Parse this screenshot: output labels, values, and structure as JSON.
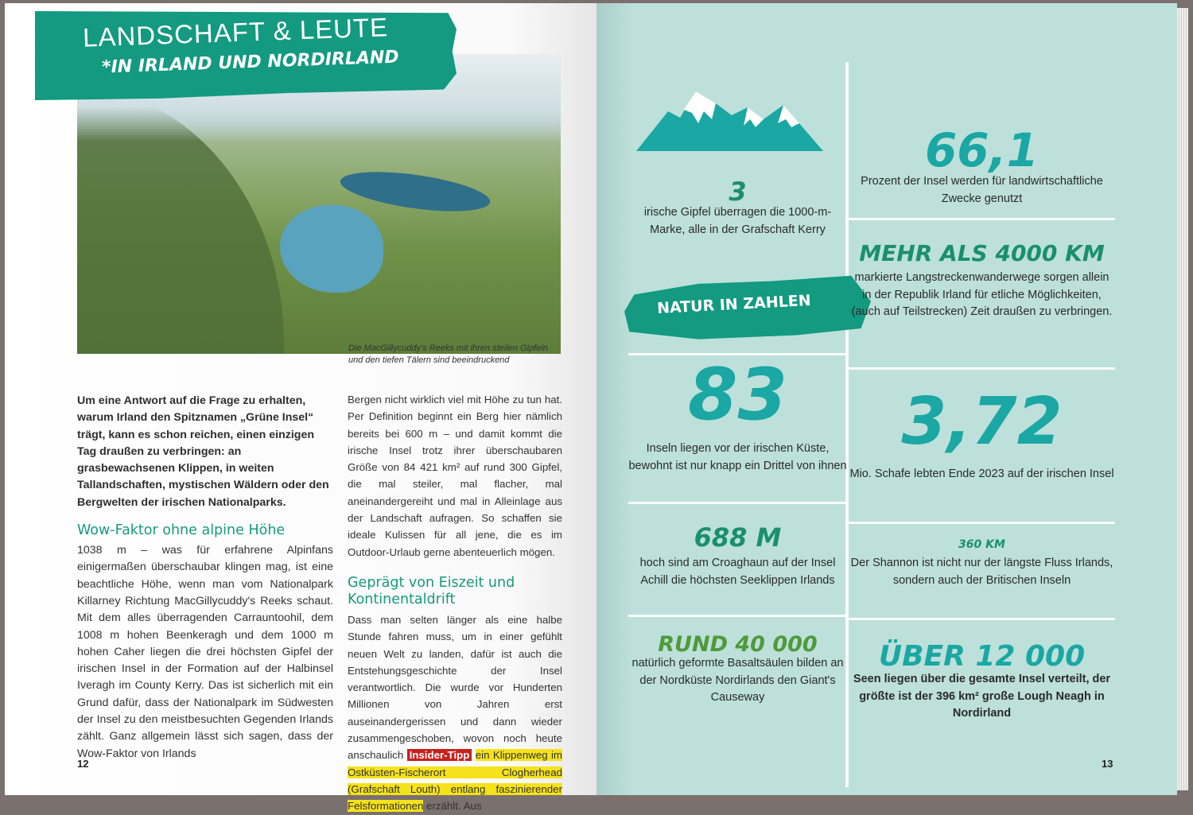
{
  "left_page": {
    "header": {
      "title": "LANDSCHAFT & LEUTE",
      "subtitle": "*IN IRLAND UND NORDIRLAND"
    },
    "photo_caption": "Die MacGillycuddy's Reeks mit ihren steilen Gipfeln und den tiefen Tälern sind beeindruckend",
    "intro": "Um eine Antwort auf die Frage zu erhalten, warum Irland den Spitznamen „Grüne Insel“ trägt, kann es schon reichen, einen einzigen Tag draußen zu verbringen: an grasbewachsenen Klippen, in weiten Tallandschaften, mystischen Wäldern oder den Bergwelten der irischen Nationalparks.",
    "section1": {
      "heading": "Wow-Faktor ohne alpine Höhe",
      "text": "1038 m – was für erfahrene Alpinfans einigermaßen überschaubar klingen mag, ist eine beachtliche Höhe, wenn man vom Nationalpark Killarney Richtung MacGillycuddy's Reeks schaut. Mit dem alles überragenden Carrauntoohil, dem 1008 m hohen Beenkeragh und dem 1000 m hohen Caher liegen die drei höchsten Gipfel der irischen Insel in der Formation auf der Halbinsel Iveragh im County Kerry. Das ist sicherlich mit ein Grund dafür, dass der Nationalpark im Südwesten der Insel zu den meistbesuchten Gegenden Irlands zählt. Ganz allgemein lässt sich sagen, dass der Wow-Faktor von Irlands"
    },
    "section1_cont": "Bergen nicht wirklich viel mit Höhe zu tun hat. Per Definition beginnt ein Berg hier nämlich bereits bei 600 m – und damit kommt die irische Insel trotz ihrer überschaubaren Größe von 84 421 km² auf rund 300 Gipfel, die mal steiler, mal flacher, mal aneinandergereiht und mal in Alleinlage aus der Landschaft aufragen. So schaffen sie ideale Kulissen für all jene, die es im Outdoor-Urlaub gerne abenteuerlich mögen.",
    "section2": {
      "heading": "Geprägt von Eiszeit und Kontinentaldrift",
      "text": "Dass man selten länger als eine halbe Stunde fahren muss, um in einer gefühlt neuen Welt zu landen, dafür ist auch die Entstehungsgeschichte der Insel verantwortlich. Die wurde vor Hunderten Millionen von Jahren erst auseinandergerissen und dann wieder zusammengeschoben, wovon noch heute anschaulich",
      "insider_label": "Insider-Tipp",
      "insider_text": "ein Klippenweg im Ostküsten-Fischerort Clogherhead (Grafschaft Louth) entlang faszinierender Felsformationen",
      "after": "erzählt. Aus"
    },
    "page_number": "12"
  },
  "right_page": {
    "section_label": "NATUR IN ZAHLEN",
    "stats": [
      {
        "value": "3",
        "text": "irische Gipfel überragen die 1000-m-Marke, alle in der Grafschaft Kerry"
      },
      {
        "value": "66,1",
        "text": "Prozent der Insel werden für landwirtschaftliche Zwecke genutzt"
      },
      {
        "value": "MEHR ALS 4000 KM",
        "text": "markierte Langstreckenwanderwege sorgen allein in der Republik Irland für etliche Möglichkeiten, (auch auf Teilstrecken) Zeit draußen zu verbringen."
      },
      {
        "value": "83",
        "text": "Inseln liegen vor der irischen Küste, bewohnt ist nur knapp ein Drittel von ihnen"
      },
      {
        "value": "3,72",
        "text": "Mio. Schafe lebten Ende 2023 auf der irischen Insel"
      },
      {
        "value": "688 M",
        "text": "hoch sind am Croaghaun auf der Insel Achill die höchsten Seeklippen Irlands"
      },
      {
        "value": "360 KM",
        "text": "Der Shannon ist nicht nur der längste Fluss Irlands, sondern auch der Britischen Inseln"
      },
      {
        "value": "RUND 40 000",
        "text": "natürlich geformte Basaltsäulen bilden an der Nordküste Nordirlands den Giant's Causeway"
      },
      {
        "value": "ÜBER 12 000",
        "text": "Seen liegen über die gesamte Insel verteilt, der größte ist der 396 km² große Lough Neagh in Nordirland"
      }
    ],
    "page_number": "13"
  },
  "colors": {
    "brand_teal": "#139a80",
    "stat_turquoise": "#1ba7a3",
    "stat_green": "#1a8f6e",
    "right_page_bg": "#bde0db",
    "insider_red": "#c8201d",
    "highlight_yellow": "#f5e21a"
  }
}
